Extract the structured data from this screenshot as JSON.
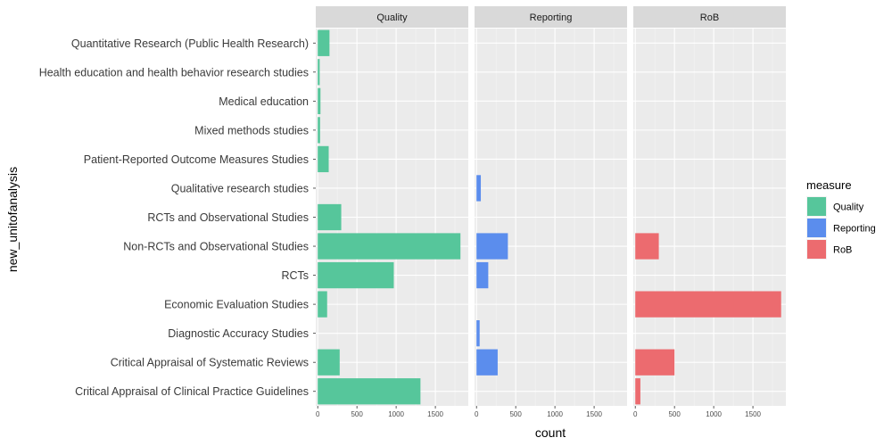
{
  "chart_data": {
    "type": "bar",
    "orientation": "horizontal",
    "facet_by": "measure",
    "categories": [
      "Quantitative Research (Public Health Research)",
      "Health education and health behavior research studies",
      "Medical education",
      "Mixed methods studies",
      "Patient-Reported Outcome Measures Studies",
      "Qualitative research studies",
      "RCTs and Observational Studies",
      "Non-RCTs and Observational Studies",
      "RCTs",
      "Economic Evaluation Studies",
      "Diagnostic Accuracy Studies",
      "Critical Appraisal of Systematic Reviews",
      "Critical Appraisal of Clinical Practice Guidelines"
    ],
    "series": [
      {
        "name": "Quality",
        "color": "#56c69b",
        "values": [
          150,
          25,
          35,
          30,
          140,
          0,
          300,
          1820,
          970,
          120,
          0,
          280,
          1310
        ]
      },
      {
        "name": "Reporting",
        "color": "#5b8ded",
        "values": [
          0,
          0,
          0,
          0,
          0,
          55,
          0,
          400,
          150,
          0,
          40,
          270,
          0
        ]
      },
      {
        "name": "RoB",
        "color": "#ec6b6f",
        "values": [
          0,
          0,
          0,
          0,
          0,
          0,
          0,
          300,
          0,
          1860,
          0,
          500,
          65
        ]
      }
    ],
    "xlabel": "count",
    "ylabel": "new_unitofanalysis",
    "xticks": [
      0,
      500,
      1000,
      1500
    ],
    "xlim": [
      -25,
      1920
    ],
    "grid": true,
    "legend": {
      "title": "measure",
      "position": "right"
    }
  }
}
